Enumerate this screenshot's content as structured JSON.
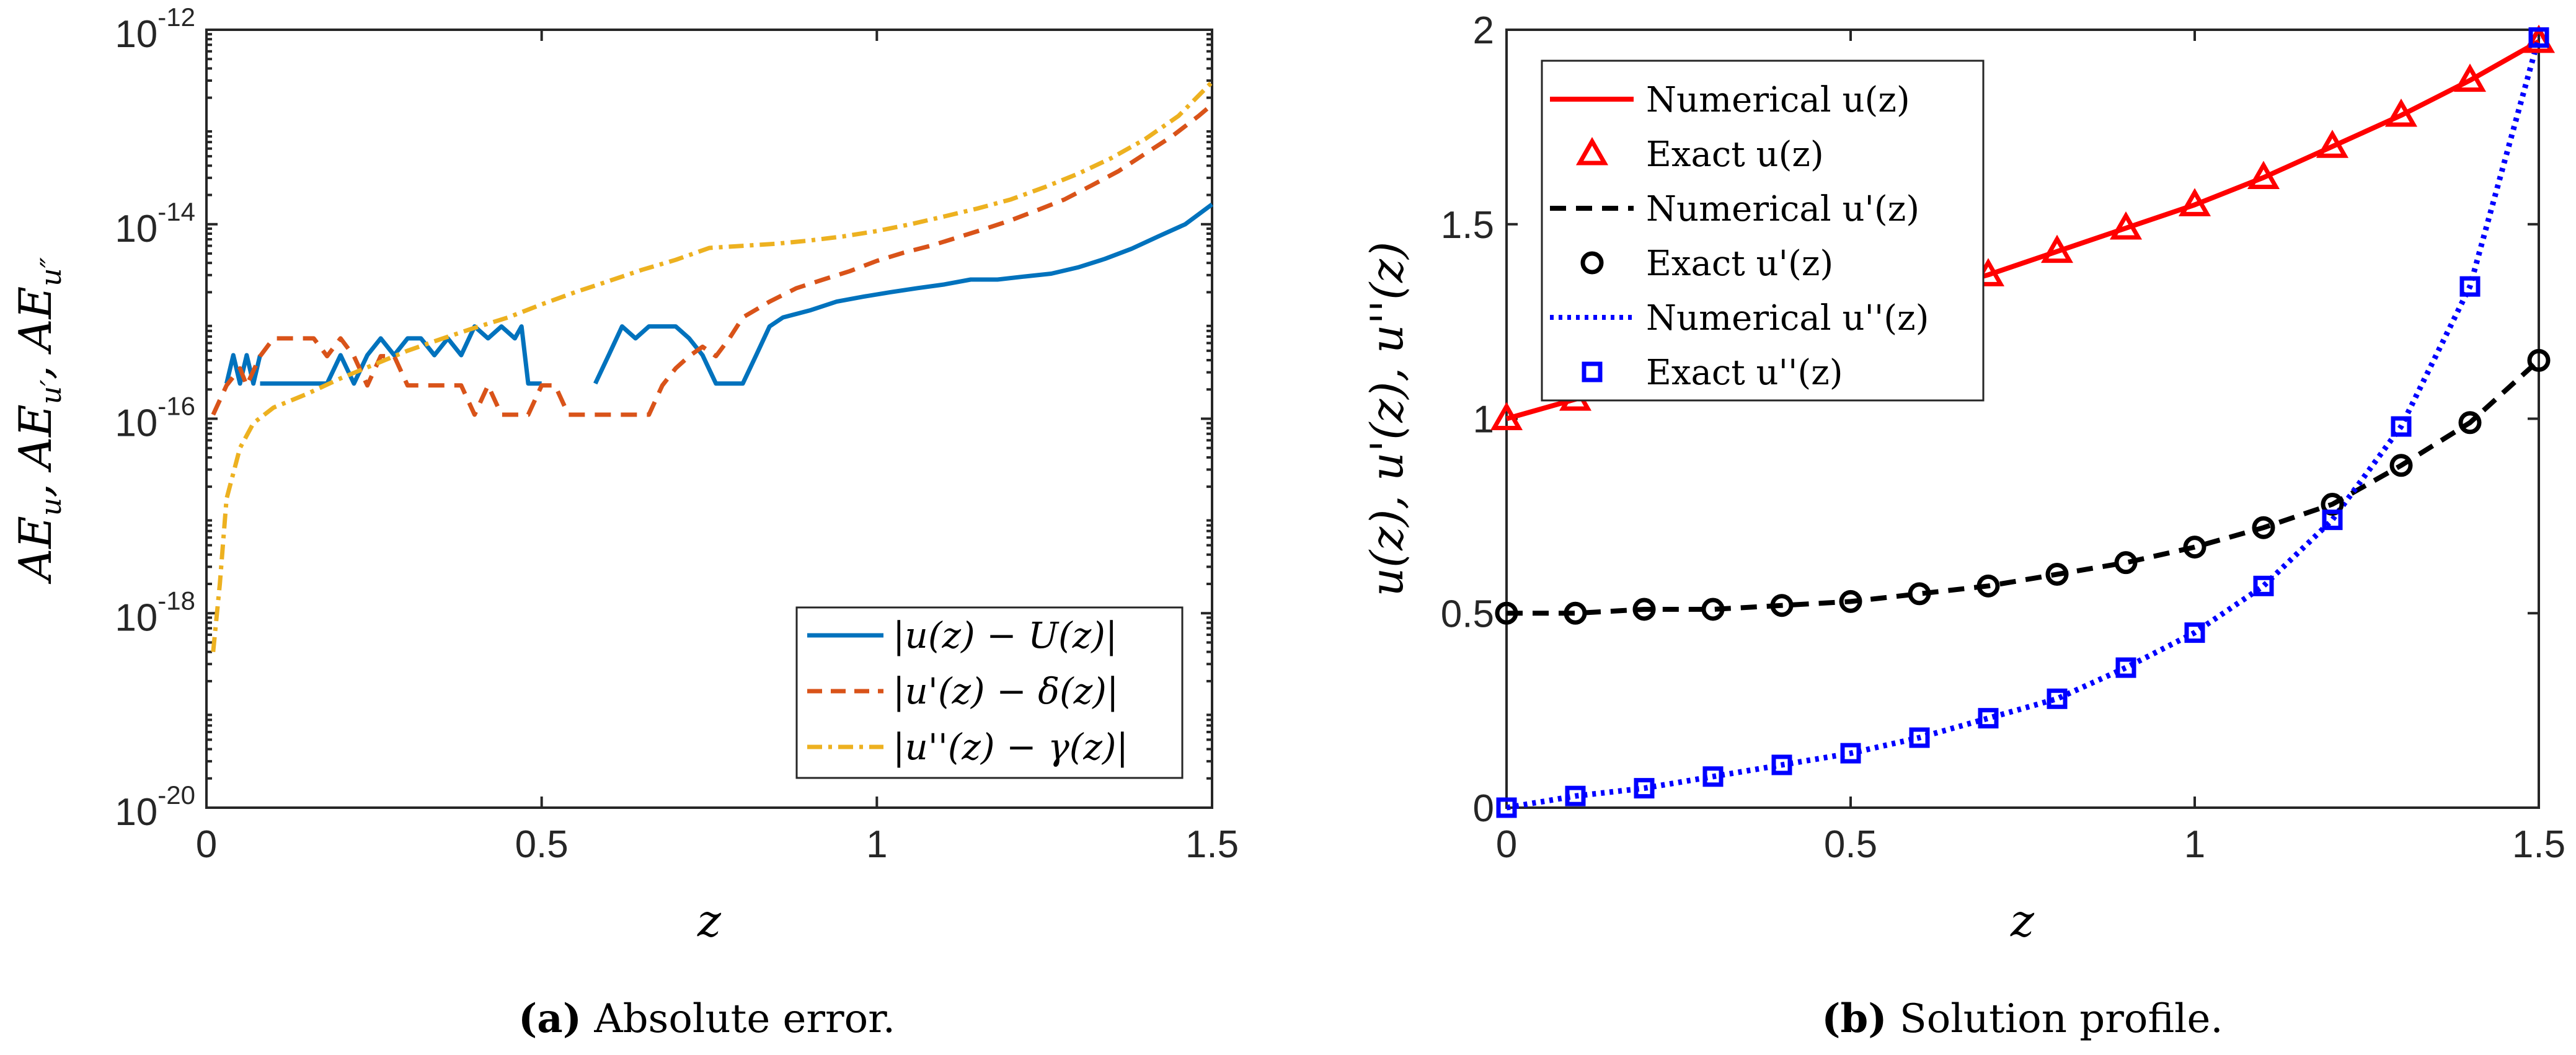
{
  "chart_data": [
    {
      "id": "a",
      "type": "line",
      "yscale": "log",
      "xlim": [
        0,
        1.5
      ],
      "ylim": [
        1e-20,
        1e-12
      ],
      "xticks": [
        "0",
        "0.5",
        "1",
        "1.5"
      ],
      "ytick_base": "10",
      "ytick_exponents": [
        "-20",
        "-18",
        "-16",
        "-14",
        "-12"
      ],
      "xlabel": "z",
      "ylabel": "AE_u, AE_{u'}, AE_{u''}",
      "grid": false,
      "legend_position": "bottom-right",
      "caption_label": "(a)",
      "caption_text": "Absolute error.",
      "series": [
        {
          "name": "|u(z) − U(z)|",
          "color": "#0072BD",
          "style": "solid",
          "points": [
            [
              0.03,
              2.3e-16
            ],
            [
              0.04,
              4.5e-16
            ],
            [
              0.05,
              2.3e-16
            ],
            [
              0.06,
              4.5e-16
            ],
            [
              0.07,
              2.3e-16
            ],
            [
              0.08,
              4.5e-16
            ],
            null,
            [
              0.08,
              2.3e-16
            ],
            [
              0.14,
              2.3e-16
            ],
            [
              0.18,
              2.3e-16
            ],
            [
              0.2,
              4.5e-16
            ],
            [
              0.22,
              2.3e-16
            ],
            [
              0.24,
              4.5e-16
            ],
            [
              0.26,
              6.7e-16
            ],
            [
              0.28,
              4.5e-16
            ],
            [
              0.3,
              6.7e-16
            ],
            [
              0.32,
              6.7e-16
            ],
            [
              0.34,
              4.5e-16
            ],
            [
              0.36,
              6.7e-16
            ],
            [
              0.38,
              4.5e-16
            ],
            [
              0.4,
              8.9e-16
            ],
            [
              0.42,
              6.7e-16
            ],
            [
              0.44,
              8.9e-16
            ],
            [
              0.46,
              6.7e-16
            ],
            [
              0.47,
              8.9e-16
            ],
            [
              0.48,
              2.3e-16
            ],
            [
              0.5,
              2.3e-16
            ],
            null,
            [
              0.58,
              2.3e-16
            ],
            [
              0.6,
              4.5e-16
            ],
            [
              0.62,
              8.9e-16
            ],
            [
              0.64,
              6.7e-16
            ],
            [
              0.66,
              8.9e-16
            ],
            [
              0.7,
              8.9e-16
            ],
            [
              0.72,
              6.7e-16
            ],
            [
              0.74,
              4.5e-16
            ],
            [
              0.76,
              2.3e-16
            ],
            [
              0.8,
              2.3e-16
            ],
            [
              0.82,
              4.5e-16
            ],
            [
              0.84,
              8.9e-16
            ],
            [
              0.86,
              1.1e-15
            ],
            [
              0.9,
              1.3e-15
            ],
            [
              0.94,
              1.6e-15
            ],
            [
              0.98,
              1.8e-15
            ],
            [
              1.02,
              2e-15
            ],
            [
              1.06,
              2.2e-15
            ],
            [
              1.1,
              2.4e-15
            ],
            [
              1.14,
              2.7e-15
            ],
            [
              1.18,
              2.7e-15
            ],
            [
              1.22,
              2.9e-15
            ],
            [
              1.26,
              3.1e-15
            ],
            [
              1.3,
              3.6e-15
            ],
            [
              1.34,
              4.4e-15
            ],
            [
              1.38,
              5.6e-15
            ],
            [
              1.42,
              7.5e-15
            ],
            [
              1.46,
              1e-14
            ],
            [
              1.5,
              1.6e-14
            ]
          ]
        },
        {
          "name": "|u'(z) − δ(z)|",
          "color": "#D95319",
          "style": "dashed",
          "points": [
            [
              0.01,
              1.1e-16
            ],
            [
              0.03,
              2.2e-16
            ],
            [
              0.05,
              3.3e-16
            ],
            [
              0.06,
              2.2e-16
            ],
            [
              0.08,
              4.4e-16
            ],
            [
              0.1,
              6.7e-16
            ],
            [
              0.16,
              6.7e-16
            ],
            [
              0.18,
              4.4e-16
            ],
            [
              0.2,
              6.7e-16
            ],
            [
              0.22,
              4.4e-16
            ],
            [
              0.24,
              2.2e-16
            ],
            [
              0.26,
              4.4e-16
            ],
            [
              0.28,
              4.4e-16
            ],
            [
              0.3,
              2.2e-16
            ],
            [
              0.34,
              2.2e-16
            ],
            [
              0.38,
              2.2e-16
            ],
            [
              0.4,
              1.1e-16
            ],
            [
              0.42,
              2.2e-16
            ],
            [
              0.44,
              1.1e-16
            ],
            [
              0.48,
              1.1e-16
            ],
            [
              0.5,
              2.2e-16
            ],
            [
              0.52,
              2.2e-16
            ],
            [
              0.54,
              1.1e-16
            ],
            [
              0.66,
              1.1e-16
            ],
            [
              0.68,
              2.2e-16
            ],
            [
              0.7,
              3.3e-16
            ],
            [
              0.72,
              4.4e-16
            ],
            [
              0.74,
              5.5e-16
            ],
            [
              0.76,
              4.4e-16
            ],
            [
              0.78,
              6.7e-16
            ],
            [
              0.8,
              1.1e-15
            ],
            [
              0.84,
              1.6e-15
            ],
            [
              0.88,
              2.2e-15
            ],
            [
              0.92,
              2.7e-15
            ],
            [
              0.96,
              3.3e-15
            ],
            [
              1.0,
              4.2e-15
            ],
            [
              1.04,
              5.1e-15
            ],
            [
              1.08,
              6e-15
            ],
            [
              1.12,
              7.3e-15
            ],
            [
              1.16,
              8.9e-15
            ],
            [
              1.2,
              1.1e-14
            ],
            [
              1.24,
              1.4e-14
            ],
            [
              1.28,
              1.8e-14
            ],
            [
              1.32,
              2.5e-14
            ],
            [
              1.36,
              3.5e-14
            ],
            [
              1.4,
              5.3e-14
            ],
            [
              1.44,
              8e-14
            ],
            [
              1.48,
              1.3e-13
            ],
            [
              1.5,
              1.7e-13
            ]
          ]
        },
        {
          "name": "|u''(z) − γ(z)|",
          "color": "#EDB120",
          "style": "dashdot",
          "points": [
            [
              0.01,
              4e-19
            ],
            [
              0.02,
              2e-18
            ],
            [
              0.03,
              1.5e-17
            ],
            [
              0.05,
              5e-17
            ],
            [
              0.07,
              9e-17
            ],
            [
              0.1,
              1.3e-16
            ],
            [
              0.15,
              1.8e-16
            ],
            [
              0.2,
              2.6e-16
            ],
            [
              0.25,
              3.6e-16
            ],
            [
              0.3,
              5e-16
            ],
            [
              0.35,
              6.6e-16
            ],
            [
              0.4,
              8.6e-16
            ],
            [
              0.45,
              1.1e-15
            ],
            [
              0.5,
              1.5e-15
            ],
            [
              0.55,
              2e-15
            ],
            [
              0.6,
              2.6e-15
            ],
            [
              0.65,
              3.4e-15
            ],
            [
              0.7,
              4.3e-15
            ],
            [
              0.75,
              5.7e-15
            ],
            [
              0.8,
              6e-15
            ],
            [
              0.85,
              6.3e-15
            ],
            [
              0.9,
              6.8e-15
            ],
            [
              0.95,
              7.5e-15
            ],
            [
              1.0,
              8.5e-15
            ],
            [
              1.05,
              1e-14
            ],
            [
              1.1,
              1.2e-14
            ],
            [
              1.15,
              1.45e-14
            ],
            [
              1.2,
              1.8e-14
            ],
            [
              1.25,
              2.4e-14
            ],
            [
              1.3,
              3.3e-14
            ],
            [
              1.35,
              4.8e-14
            ],
            [
              1.4,
              7.5e-14
            ],
            [
              1.45,
              1.3e-13
            ],
            [
              1.5,
              2.9e-13
            ]
          ]
        }
      ]
    },
    {
      "id": "b",
      "type": "line",
      "xlim": [
        0,
        1.5
      ],
      "ylim": [
        0,
        2
      ],
      "xticks": [
        "0",
        "0.5",
        "1",
        "1.5"
      ],
      "yticks": [
        "0",
        "0.5",
        "1",
        "1.5",
        "2"
      ],
      "xlabel": "z",
      "ylabel": "u(z), u'(z), u''(z)",
      "grid": false,
      "legend_position": "top-left",
      "caption_label": "(b)",
      "caption_text": "Solution profile.",
      "x": [
        0,
        0.1,
        0.2,
        0.3,
        0.4,
        0.5,
        0.6,
        0.7,
        0.8,
        0.9,
        1.0,
        1.1,
        1.2,
        1.3,
        1.4,
        1.5
      ],
      "series": [
        {
          "name": "Numerical u(z)",
          "color": "#FF0000",
          "style": "solid",
          "marker": "none",
          "values": [
            1.0,
            1.05,
            1.1,
            1.15,
            1.21,
            1.27,
            1.32,
            1.37,
            1.43,
            1.49,
            1.55,
            1.62,
            1.7,
            1.78,
            1.87,
            1.97
          ]
        },
        {
          "name": "Exact u(z)",
          "color": "#FF0000",
          "style": "none",
          "marker": "triangle",
          "values": [
            1.0,
            1.05,
            1.1,
            1.15,
            1.21,
            1.27,
            1.32,
            1.37,
            1.43,
            1.49,
            1.55,
            1.62,
            1.7,
            1.78,
            1.87,
            1.97
          ]
        },
        {
          "name": "Numerical u'(z)",
          "color": "#000000",
          "style": "dashed",
          "marker": "none",
          "values": [
            0.5,
            0.5,
            0.51,
            0.51,
            0.52,
            0.53,
            0.55,
            0.57,
            0.6,
            0.63,
            0.67,
            0.72,
            0.78,
            0.88,
            0.99,
            1.15
          ]
        },
        {
          "name": "Exact u'(z)",
          "color": "#000000",
          "style": "none",
          "marker": "circle",
          "values": [
            0.5,
            0.5,
            0.51,
            0.51,
            0.52,
            0.53,
            0.55,
            0.57,
            0.6,
            0.63,
            0.67,
            0.72,
            0.78,
            0.88,
            0.99,
            1.15
          ]
        },
        {
          "name": "Numerical u''(z)",
          "color": "#0000FF",
          "style": "dotted",
          "marker": "none",
          "values": [
            0.0,
            0.03,
            0.05,
            0.08,
            0.11,
            0.14,
            0.18,
            0.23,
            0.28,
            0.36,
            0.45,
            0.57,
            0.74,
            0.98,
            1.34,
            1.98
          ]
        },
        {
          "name": "Exact u''(z)",
          "color": "#0000FF",
          "style": "none",
          "marker": "square",
          "values": [
            0.0,
            0.03,
            0.05,
            0.08,
            0.11,
            0.14,
            0.18,
            0.23,
            0.28,
            0.36,
            0.45,
            0.57,
            0.74,
            0.98,
            1.34,
            1.98
          ]
        }
      ]
    }
  ]
}
